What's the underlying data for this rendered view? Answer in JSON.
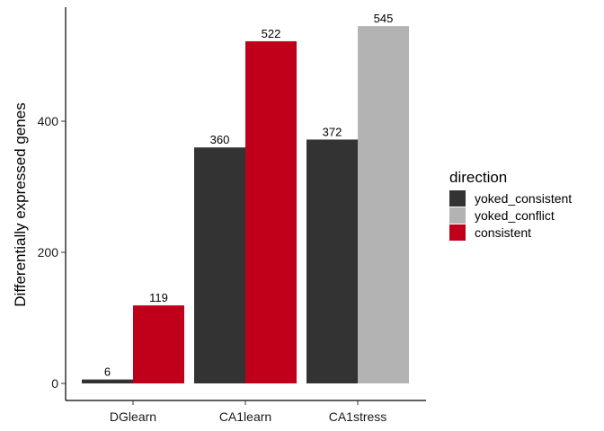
{
  "chart_data": {
    "type": "bar",
    "categories": [
      "DGlearn",
      "CA1learn",
      "CA1stress"
    ],
    "ylabel": "Differentially expressed genes",
    "xlabel": "",
    "ylim": [
      0,
      560
    ],
    "yticks": [
      "0",
      "200",
      "400"
    ],
    "grid": false,
    "legend": {
      "title": "direction",
      "position": "right",
      "entries": [
        "yoked_consistent",
        "yoked_conflict",
        "consistent"
      ]
    },
    "series": [
      {
        "name": "yoked_consistent",
        "color": "#333333"
      },
      {
        "name": "yoked_conflict",
        "color": "#B3B3B3"
      },
      {
        "name": "consistent",
        "color": "#C0001A"
      }
    ],
    "bars": [
      {
        "category": "DGlearn",
        "series": "yoked_consistent",
        "value": 6,
        "label": "6"
      },
      {
        "category": "DGlearn",
        "series": "consistent",
        "value": 119,
        "label": "119"
      },
      {
        "category": "CA1learn",
        "series": "yoked_consistent",
        "value": 360,
        "label": "360"
      },
      {
        "category": "CA1learn",
        "series": "consistent",
        "value": 522,
        "label": "522"
      },
      {
        "category": "CA1stress",
        "series": "yoked_consistent",
        "value": 372,
        "label": "372"
      },
      {
        "category": "CA1stress",
        "series": "yoked_conflict",
        "value": 545,
        "label": "545"
      }
    ]
  }
}
